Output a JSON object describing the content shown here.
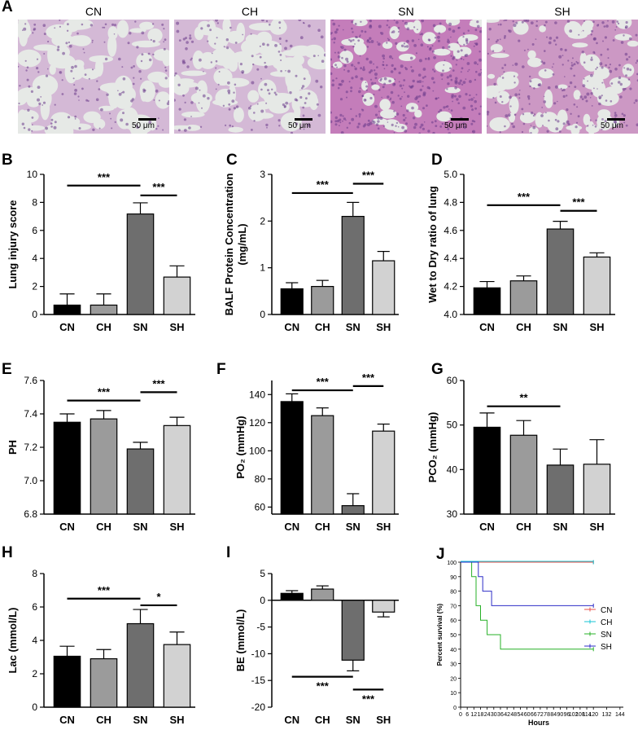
{
  "panel_A": {
    "letter": "A",
    "images": [
      {
        "title": "CN",
        "scale": "50 μm",
        "texture": "sparse"
      },
      {
        "title": "CH",
        "scale": "50 μm",
        "texture": "sparse"
      },
      {
        "title": "SN",
        "scale": "50 μm",
        "texture": "dense"
      },
      {
        "title": "SH",
        "scale": "50 μm",
        "texture": "medium"
      }
    ]
  },
  "colors": {
    "CN": "#000000",
    "CH": "#9b9b9b",
    "SN": "#6e6e6e",
    "SH": "#d2d2d2"
  },
  "chart_data": [
    {
      "panel": "B",
      "type": "bar",
      "categories": [
        "CN",
        "CH",
        "SN",
        "SH"
      ],
      "values": [
        0.67,
        0.67,
        7.17,
        2.67
      ],
      "errors": [
        0.8,
        0.8,
        0.8,
        0.8
      ],
      "ylabel": "Lung injury score",
      "ylim": [
        0,
        10
      ],
      "yticks": [
        0,
        2,
        4,
        6,
        8,
        10
      ],
      "sig": [
        {
          "from": 0,
          "to": 2,
          "y": 9.2,
          "label": "***"
        },
        {
          "from": 2,
          "to": 3,
          "y": 8.5,
          "label": "***"
        }
      ]
    },
    {
      "panel": "C",
      "type": "bar",
      "categories": [
        "CN",
        "CH",
        "SN",
        "SH"
      ],
      "values": [
        0.55,
        0.6,
        2.1,
        1.15
      ],
      "errors": [
        0.13,
        0.13,
        0.3,
        0.2
      ],
      "ylabel": "BALF Protein Concentration\n(mg/mL)",
      "ylim": [
        0,
        3
      ],
      "yticks": [
        0,
        1,
        2,
        3
      ],
      "sig": [
        {
          "from": 0,
          "to": 2,
          "y": 2.6,
          "label": "***"
        },
        {
          "from": 2,
          "to": 3,
          "y": 2.8,
          "label": "***"
        }
      ]
    },
    {
      "panel": "D",
      "type": "bar",
      "categories": [
        "CN",
        "CH",
        "SN",
        "SH"
      ],
      "values": [
        4.19,
        4.24,
        4.61,
        4.41
      ],
      "errors": [
        0.045,
        0.035,
        0.055,
        0.03
      ],
      "ylabel": "Wet to Dry ratio of lung",
      "ylim": [
        4.0,
        5.0
      ],
      "yticks": [
        4.0,
        4.2,
        4.4,
        4.6,
        4.8,
        5.0
      ],
      "ytick_format": 1,
      "sig": [
        {
          "from": 0,
          "to": 2,
          "y": 4.78,
          "label": "***"
        },
        {
          "from": 2,
          "to": 3,
          "y": 4.74,
          "label": "***"
        }
      ]
    },
    {
      "panel": "E",
      "type": "bar",
      "categories": [
        "CN",
        "CH",
        "SN",
        "SH"
      ],
      "values": [
        7.35,
        7.37,
        7.19,
        7.33
      ],
      "errors": [
        0.05,
        0.05,
        0.04,
        0.05
      ],
      "ylabel": "PH",
      "ylim": [
        6.8,
        7.6
      ],
      "yticks": [
        6.8,
        7.0,
        7.2,
        7.4,
        7.6
      ],
      "ytick_format": 1,
      "sig": [
        {
          "from": 0,
          "to": 2,
          "y": 7.48,
          "label": "***"
        },
        {
          "from": 2,
          "to": 3,
          "y": 7.53,
          "label": "***"
        }
      ]
    },
    {
      "panel": "F",
      "type": "bar",
      "categories": [
        "CN",
        "CH",
        "SN",
        "SH"
      ],
      "values": [
        135,
        125,
        61,
        114
      ],
      "errors": [
        5.5,
        5.5,
        8.5,
        5
      ],
      "ylabel": "PO₂ (mmHg)",
      "ylim": [
        55,
        150
      ],
      "yticks": [
        60,
        80,
        100,
        120,
        140
      ],
      "ybase": 55,
      "sig": [
        {
          "from": 0,
          "to": 2,
          "y": 143,
          "label": "***"
        },
        {
          "from": 2,
          "to": 3,
          "y": 146,
          "label": "***"
        }
      ]
    },
    {
      "panel": "G",
      "type": "bar",
      "categories": [
        "CN",
        "CH",
        "SN",
        "SH"
      ],
      "values": [
        49.5,
        47.7,
        41,
        41.2
      ],
      "errors": [
        3.2,
        3.3,
        3.6,
        5.5
      ],
      "ylabel": "PCO₂ (mmHg)",
      "ylim": [
        30,
        60
      ],
      "yticks": [
        30,
        40,
        50,
        60
      ],
      "sig": [
        {
          "from": 0,
          "to": 2,
          "y": 54.2,
          "label": "**"
        }
      ]
    },
    {
      "panel": "H",
      "type": "bar",
      "categories": [
        "CN",
        "CH",
        "SN",
        "SH"
      ],
      "values": [
        3.05,
        2.9,
        5.0,
        3.75
      ],
      "errors": [
        0.6,
        0.55,
        0.85,
        0.75
      ],
      "ylabel": "Lac (mmol/L)",
      "ylim": [
        0,
        8
      ],
      "yticks": [
        0,
        2,
        4,
        6,
        8
      ],
      "sig": [
        {
          "from": 0,
          "to": 2,
          "y": 6.5,
          "label": "***"
        },
        {
          "from": 2,
          "to": 3,
          "y": 6.1,
          "label": "*"
        }
      ]
    },
    {
      "panel": "I",
      "type": "bar",
      "categories": [
        "CN",
        "CH",
        "SN",
        "SH"
      ],
      "values": [
        1.3,
        2.1,
        -11.2,
        -2.2
      ],
      "errors": [
        0.5,
        0.6,
        2.0,
        0.9
      ],
      "ylabel": "BE (mmol/L)",
      "ylim": [
        -20,
        5
      ],
      "yticks": [
        -20,
        -15,
        -10,
        -5,
        0,
        5
      ],
      "ybase": 0,
      "sig": [
        {
          "from": 0,
          "to": 2,
          "y": -14.3,
          "label": "***",
          "label_below": true
        },
        {
          "from": 2,
          "to": 3,
          "y": -16.7,
          "label": "***",
          "label_below": true
        }
      ]
    },
    {
      "panel": "J",
      "type": "line",
      "xlabel": "Hours",
      "ylabel": "Percent survival (%)",
      "xlim": [
        0,
        150
      ],
      "ylim": [
        0,
        100
      ],
      "xticks": [
        0,
        6,
        12,
        18,
        24,
        30,
        36,
        42,
        48,
        54,
        60,
        66,
        72,
        78,
        84,
        90,
        96,
        102,
        108,
        114,
        120,
        132,
        144
      ],
      "yticks": [
        0,
        10,
        20,
        30,
        40,
        50,
        60,
        70,
        80,
        90,
        100
      ],
      "legend": "right",
      "series": [
        {
          "name": "CN",
          "color": "#e8534c",
          "x": [
            0,
            120
          ],
          "y": [
            100,
            100
          ]
        },
        {
          "name": "CH",
          "color": "#18c6d6",
          "x": [
            0,
            120
          ],
          "y": [
            100,
            100
          ]
        },
        {
          "name": "SN",
          "color": "#27b027",
          "x": [
            0,
            10,
            10,
            14,
            14,
            18,
            18,
            24,
            24,
            36,
            36,
            120
          ],
          "y": [
            100,
            100,
            90,
            90,
            70,
            70,
            60,
            60,
            50,
            50,
            40,
            40
          ]
        },
        {
          "name": "SH",
          "color": "#2e2ec8",
          "x": [
            0,
            16,
            16,
            20,
            20,
            28,
            28,
            120
          ],
          "y": [
            100,
            100,
            90,
            90,
            80,
            80,
            70,
            70
          ]
        }
      ]
    }
  ]
}
